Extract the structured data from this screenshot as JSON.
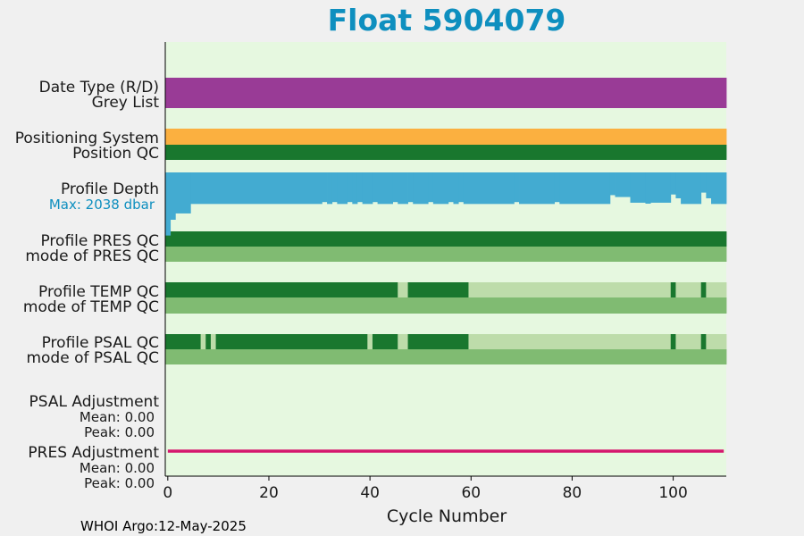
{
  "chart_data": {
    "type": "bar",
    "title": "Float 5904079",
    "xlabel": "Cycle Number",
    "xlim": [
      -0.5,
      110.5
    ],
    "xticks": [
      0,
      20,
      40,
      60,
      80,
      100
    ],
    "footer": "WHOI Argo:12-May-2025",
    "colors": {
      "plot_bg": "#e6f8e0",
      "title": "#0e8fbf",
      "purple": "#993b96",
      "orange": "#fbb040",
      "dark_green": "#19772e",
      "mid_green": "#80bb72",
      "light_green": "#bddcaa",
      "depth_blue": "#43abd1",
      "depth_label": "#0e8fbf",
      "magenta": "#d5176e"
    },
    "rows": {
      "date_type_label": "Date Type (R/D)",
      "grey_list_label": "Grey List",
      "positioning_label": "Positioning System",
      "position_qc_label": "Position QC",
      "profile_depth_label": "Profile Depth",
      "profile_depth_max": "Max: 2038 dbar",
      "pres_qc_label": "Profile PRES QC",
      "pres_mode_label": "mode of PRES QC",
      "temp_qc_label": "Profile TEMP QC",
      "temp_mode_label": "mode of TEMP QC",
      "psal_qc_label": "Profile PSAL QC",
      "psal_mode_label": "mode of PSAL QC",
      "psal_adj_label": "PSAL Adjustment",
      "psal_adj_mean": "Mean: 0.00",
      "psal_adj_peak": "Peak: 0.00",
      "pres_adj_label": "PRES Adjustment",
      "pres_adj_mean": "Mean: 0.00",
      "pres_adj_peak": "Peak: 0.00"
    },
    "profile_depth_dbar": [
      {
        "from": 0,
        "to": 0,
        "depth": 2000
      },
      {
        "from": 1,
        "to": 1,
        "depth": 1500
      },
      {
        "from": 2,
        "to": 4,
        "depth": 1300
      },
      {
        "from": 5,
        "to": 30,
        "depth": 1000
      },
      {
        "from": 31,
        "to": 31,
        "depth": 940
      },
      {
        "from": 32,
        "to": 32,
        "depth": 1000
      },
      {
        "from": 33,
        "to": 33,
        "depth": 940
      },
      {
        "from": 34,
        "to": 35,
        "depth": 1000
      },
      {
        "from": 36,
        "to": 36,
        "depth": 940
      },
      {
        "from": 37,
        "to": 37,
        "depth": 1000
      },
      {
        "from": 38,
        "to": 38,
        "depth": 940
      },
      {
        "from": 39,
        "to": 40,
        "depth": 1000
      },
      {
        "from": 41,
        "to": 41,
        "depth": 940
      },
      {
        "from": 42,
        "to": 44,
        "depth": 1000
      },
      {
        "from": 45,
        "to": 45,
        "depth": 940
      },
      {
        "from": 46,
        "to": 47,
        "depth": 1000
      },
      {
        "from": 48,
        "to": 48,
        "depth": 940
      },
      {
        "from": 49,
        "to": 51,
        "depth": 1000
      },
      {
        "from": 52,
        "to": 52,
        "depth": 940
      },
      {
        "from": 53,
        "to": 55,
        "depth": 1000
      },
      {
        "from": 56,
        "to": 56,
        "depth": 940
      },
      {
        "from": 57,
        "to": 57,
        "depth": 1000
      },
      {
        "from": 58,
        "to": 58,
        "depth": 940
      },
      {
        "from": 59,
        "to": 68,
        "depth": 1000
      },
      {
        "from": 69,
        "to": 69,
        "depth": 940
      },
      {
        "from": 70,
        "to": 76,
        "depth": 1000
      },
      {
        "from": 77,
        "to": 77,
        "depth": 940
      },
      {
        "from": 78,
        "to": 87,
        "depth": 1000
      },
      {
        "from": 88,
        "to": 88,
        "depth": 720
      },
      {
        "from": 89,
        "to": 91,
        "depth": 780
      },
      {
        "from": 92,
        "to": 94,
        "depth": 960
      },
      {
        "from": 95,
        "to": 95,
        "depth": 990
      },
      {
        "from": 96,
        "to": 99,
        "depth": 960
      },
      {
        "from": 100,
        "to": 100,
        "depth": 700
      },
      {
        "from": 101,
        "to": 101,
        "depth": 820
      },
      {
        "from": 102,
        "to": 105,
        "depth": 1000
      },
      {
        "from": 106,
        "to": 106,
        "depth": 640
      },
      {
        "from": 107,
        "to": 107,
        "depth": 820
      },
      {
        "from": 108,
        "to": 110,
        "depth": 1000
      }
    ],
    "grey_list": [
      {
        "from": -0.5,
        "to": 110.5,
        "color": "purple"
      }
    ],
    "positioning_system": [
      {
        "from": -0.5,
        "to": 110.5,
        "color": "orange"
      }
    ],
    "position_qc": [
      {
        "from": -0.5,
        "to": 110.5,
        "color": "dark_green"
      }
    ],
    "pres_qc": [
      {
        "from": -0.5,
        "to": 110.5,
        "color": "dark_green"
      }
    ],
    "pres_mode": [
      {
        "from": -0.5,
        "to": 110.5,
        "color": "mid_green"
      }
    ],
    "temp_qc": [
      {
        "from": -0.5,
        "to": 45.5,
        "color": "dark_green"
      },
      {
        "from": 45.5,
        "to": 47.5,
        "color": "light_green"
      },
      {
        "from": 47.5,
        "to": 59.5,
        "color": "dark_green"
      },
      {
        "from": 59.5,
        "to": 99.5,
        "color": "light_green"
      },
      {
        "from": 99.5,
        "to": 100.5,
        "color": "dark_green"
      },
      {
        "from": 100.5,
        "to": 105.5,
        "color": "light_green"
      },
      {
        "from": 105.5,
        "to": 106.5,
        "color": "dark_green"
      },
      {
        "from": 106.5,
        "to": 110.5,
        "color": "light_green"
      }
    ],
    "temp_mode": [
      {
        "from": -0.5,
        "to": 110.5,
        "color": "mid_green"
      }
    ],
    "psal_qc": [
      {
        "from": -0.5,
        "to": 6.5,
        "color": "dark_green"
      },
      {
        "from": 6.5,
        "to": 7.5,
        "color": "light_green"
      },
      {
        "from": 7.5,
        "to": 8.5,
        "color": "dark_green"
      },
      {
        "from": 8.5,
        "to": 9.5,
        "color": "light_green"
      },
      {
        "from": 9.5,
        "to": 39.5,
        "color": "dark_green"
      },
      {
        "from": 39.5,
        "to": 40.5,
        "color": "light_green"
      },
      {
        "from": 40.5,
        "to": 45.5,
        "color": "dark_green"
      },
      {
        "from": 45.5,
        "to": 47.5,
        "color": "light_green"
      },
      {
        "from": 47.5,
        "to": 59.5,
        "color": "dark_green"
      },
      {
        "from": 59.5,
        "to": 99.5,
        "color": "light_green"
      },
      {
        "from": 99.5,
        "to": 100.5,
        "color": "dark_green"
      },
      {
        "from": 100.5,
        "to": 105.5,
        "color": "light_green"
      },
      {
        "from": 105.5,
        "to": 106.5,
        "color": "dark_green"
      },
      {
        "from": 106.5,
        "to": 110.5,
        "color": "light_green"
      }
    ],
    "psal_mode": [
      {
        "from": -0.5,
        "to": 110.5,
        "color": "mid_green"
      }
    ],
    "pres_adjustment": {
      "from": 0,
      "to": 110,
      "value": 0.0,
      "color": "magenta"
    }
  }
}
